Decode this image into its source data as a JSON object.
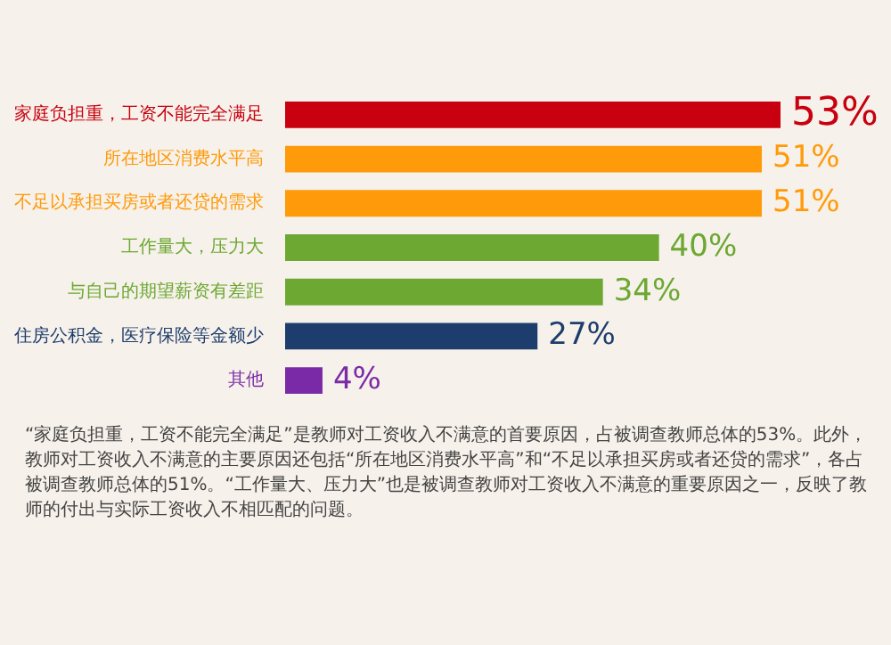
{
  "chart_data": {
    "type": "bar",
    "orientation": "horizontal",
    "categories": [
      "家庭负担重，工资不能完全满足",
      "所在地区消费水平高",
      "不足以承担买房或者还贷的需求",
      "工作量大，压力大",
      "与自己的期望薪资有差距",
      "住房公积金，医疗保险等金额少",
      "其他"
    ],
    "values": [
      53,
      51,
      51,
      40,
      34,
      27,
      4
    ],
    "colors": [
      "#c8000f",
      "#ff9a0a",
      "#ff9a0a",
      "#6ca832",
      "#6ca832",
      "#1d3d6c",
      "#7a2aa6"
    ],
    "value_labels": [
      "53%",
      "51%",
      "51%",
      "40%",
      "34%",
      "27%",
      "4%"
    ],
    "annotations": [
      "“家庭负担重，工资不能完全满足”是教师对工资收入不满意的首要原因，占被调查教师总体的53%。此外，教师对工资收入不满意的主要原因还包括“所在地区消费水平高”和“不足以承担买房或者还贷的需求”，各占被调查教师总体的51%。“工作量大、压力大”也是被调查教师对工资收入不满意的重要原因之一，反映了教师的付出与实际工资收入不相匹配的问题。"
    ]
  }
}
